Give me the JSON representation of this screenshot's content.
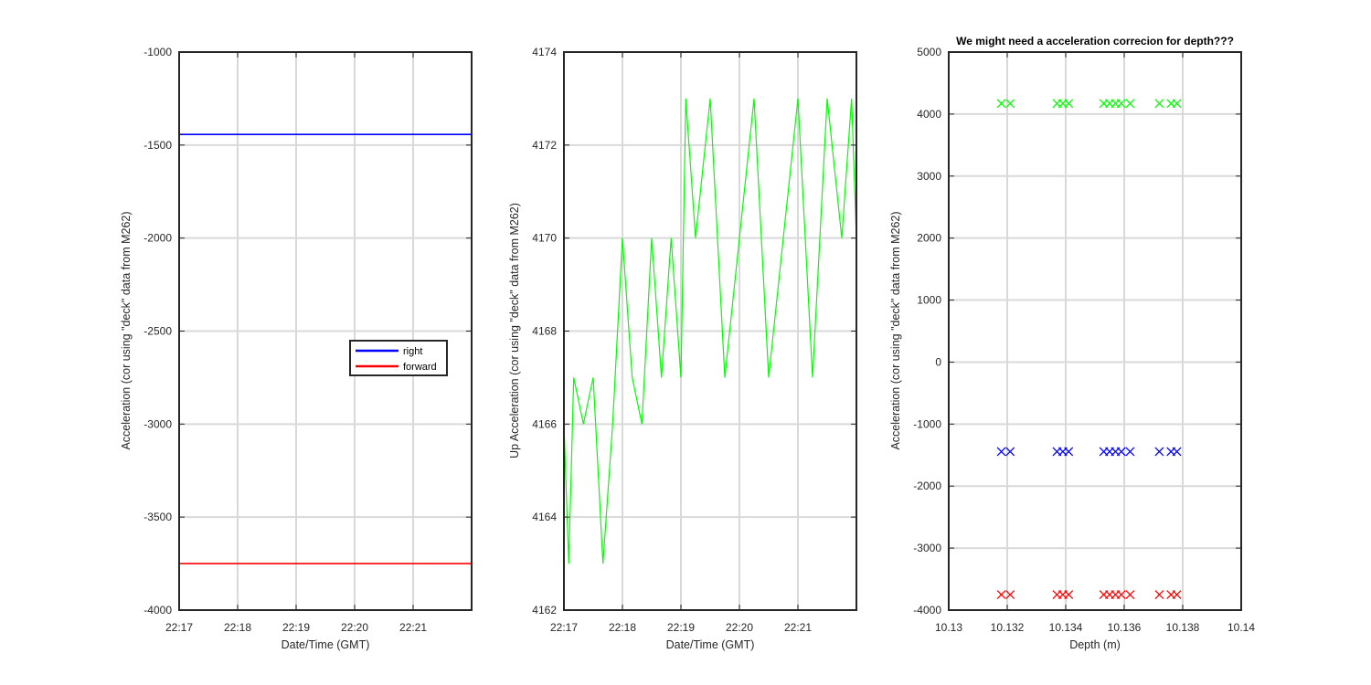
{
  "colors": {
    "blue": "#0000ff",
    "red": "#ff0000",
    "green": "#00ff00",
    "grid": "#d9d9d9",
    "axis": "#262626"
  },
  "chart_data": [
    {
      "type": "line",
      "title": "",
      "xlabel": "Date/Time (GMT)",
      "ylabel": "Acceleration (cor using \"deck\" data from M262)",
      "xlim": [
        "22:17:00",
        "22:22:00"
      ],
      "ylim": [
        -4000,
        -1000
      ],
      "x_ticks": [
        "22:17",
        "22:18",
        "22:19",
        "22:20",
        "22:21"
      ],
      "y_ticks": [
        "-1000",
        "-1500",
        "-2000",
        "-2500",
        "-3000",
        "-3500",
        "-4000"
      ],
      "grid": true,
      "legend": {
        "position": "center-right",
        "entries": [
          "right",
          "forward"
        ]
      },
      "series": [
        {
          "name": "right",
          "color": "#0000ff",
          "x": [
            "22:17:00",
            "22:22:00"
          ],
          "y": [
            -1443,
            -1443
          ]
        },
        {
          "name": "forward",
          "color": "#ff0000",
          "x": [
            "22:17:00",
            "22:22:00"
          ],
          "y": [
            -3750,
            -3750
          ]
        }
      ]
    },
    {
      "type": "line",
      "title": "",
      "xlabel": "Date/Time (GMT)",
      "ylabel": "Up Acceleration (cor using \"deck\" data from M262)",
      "xlim": [
        "22:17:00",
        "22:22:00"
      ],
      "ylim": [
        4162,
        4174
      ],
      "x_ticks": [
        "22:17",
        "22:18",
        "22:19",
        "22:20",
        "22:21"
      ],
      "y_ticks": [
        "4174",
        "4172",
        "4170",
        "4168",
        "4166",
        "4164",
        "4162"
      ],
      "grid": true,
      "series": [
        {
          "color": "#00ff00",
          "x": [
            "22:17:00",
            "22:17:05",
            "22:17:10",
            "22:17:20",
            "22:17:30",
            "22:17:40",
            "22:17:50",
            "22:18:00",
            "22:18:10",
            "22:18:20",
            "22:18:30",
            "22:18:40",
            "22:18:50",
            "22:19:00",
            "22:19:05",
            "22:19:15",
            "22:19:30",
            "22:19:45",
            "22:20:00",
            "22:20:15",
            "22:20:30",
            "22:20:45",
            "22:21:00",
            "22:21:15",
            "22:21:30",
            "22:21:45",
            "22:21:55",
            "22:22:00"
          ],
          "y": [
            4166,
            4163,
            4167,
            4166,
            4167,
            4163,
            4166,
            4170,
            4167,
            4166,
            4170,
            4167,
            4170,
            4167,
            4173,
            4170,
            4173,
            4167,
            4170,
            4173,
            4167,
            4170,
            4173,
            4167,
            4173,
            4170,
            4173,
            4170
          ]
        }
      ]
    },
    {
      "type": "scatter",
      "title": "We might need a acceleration correcion for depth???",
      "xlabel": "Depth (m)",
      "ylabel": "Acceleration (cor using \"deck\" data from M262)",
      "xlim": [
        10.13,
        10.14
      ],
      "ylim": [
        -4000,
        5000
      ],
      "x_ticks": [
        "10.13",
        "10.132",
        "10.134",
        "10.136",
        "10.138",
        "10.14"
      ],
      "y_ticks": [
        "5000",
        "4000",
        "3000",
        "2000",
        "1000",
        "0",
        "-1000",
        "-2000",
        "-3000",
        "-4000"
      ],
      "grid": true,
      "marker": "x",
      "series": [
        {
          "color": "#00ff00",
          "x": [
            10.1318,
            10.1321,
            10.1337,
            10.1339,
            10.1341,
            10.1353,
            10.1355,
            10.1357,
            10.1359,
            10.1362,
            10.1372,
            10.1376,
            10.1378
          ],
          "y": [
            4170,
            4170,
            4170,
            4170,
            4170,
            4170,
            4170,
            4170,
            4170,
            4170,
            4170,
            4170,
            4170
          ]
        },
        {
          "color": "#0000ff",
          "x": [
            10.1318,
            10.1321,
            10.1337,
            10.1339,
            10.1341,
            10.1353,
            10.1355,
            10.1357,
            10.1359,
            10.1362,
            10.1372,
            10.1376,
            10.1378
          ],
          "y": [
            -1443,
            -1443,
            -1443,
            -1443,
            -1443,
            -1443,
            -1443,
            -1443,
            -1443,
            -1443,
            -1443,
            -1443,
            -1443
          ]
        },
        {
          "color": "#ff0000",
          "x": [
            10.1318,
            10.1321,
            10.1337,
            10.1339,
            10.1341,
            10.1353,
            10.1355,
            10.1357,
            10.1359,
            10.1362,
            10.1372,
            10.1376,
            10.1378
          ],
          "y": [
            -3750,
            -3750,
            -3750,
            -3750,
            -3750,
            -3750,
            -3750,
            -3750,
            -3750,
            -3750,
            -3750,
            -3750,
            -3750
          ]
        }
      ]
    }
  ]
}
